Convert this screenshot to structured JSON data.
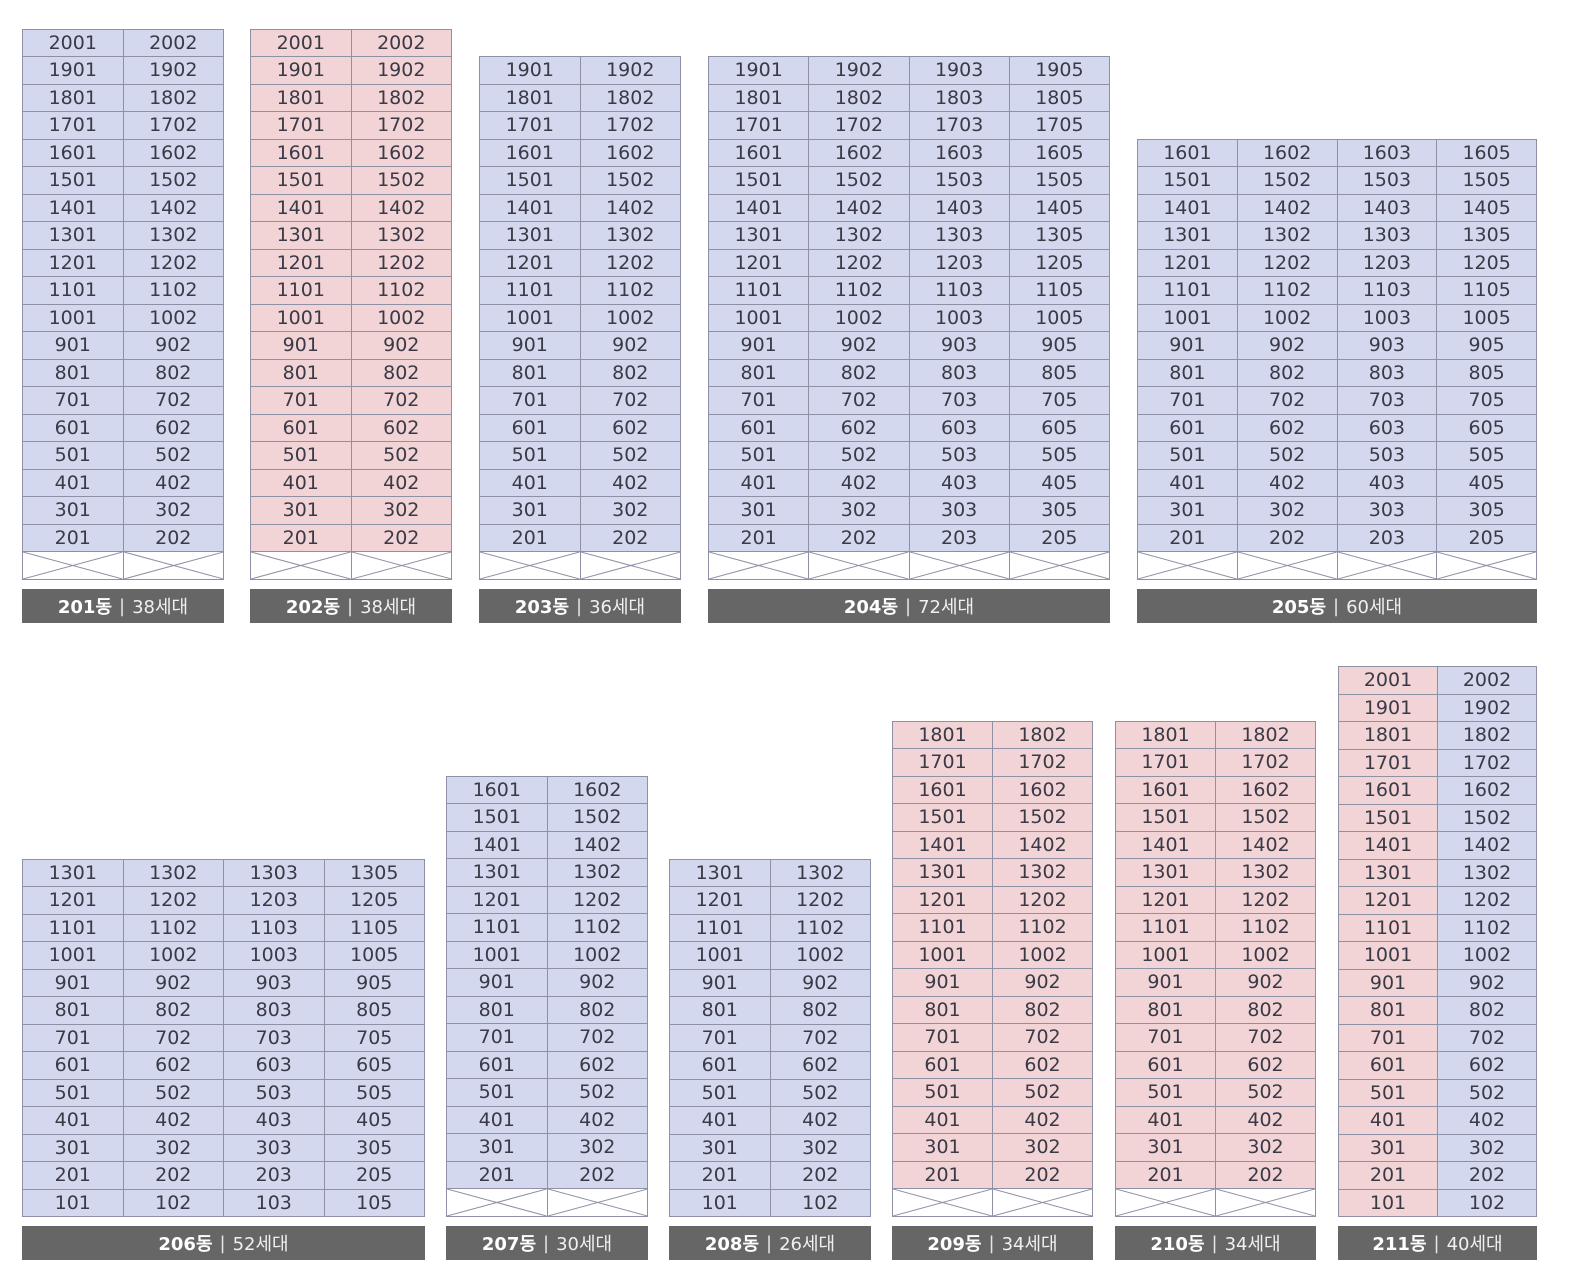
{
  "colors": {
    "available": "#d4d8ee",
    "highlighted": "#f2d4d6",
    "label_bg": "#666666",
    "grid_line": "#8e90a6"
  },
  "buildings": [
    {
      "name": "201동",
      "count": "38세대",
      "lines": [
        "01",
        "02"
      ],
      "top": 20,
      "bottom": 2,
      "pilotis": true,
      "pink_cols": []
    },
    {
      "name": "202동",
      "count": "38세대",
      "lines": [
        "01",
        "02"
      ],
      "top": 20,
      "bottom": 2,
      "pilotis": true,
      "pink_cols": [
        0,
        1
      ]
    },
    {
      "name": "203동",
      "count": "36세대",
      "lines": [
        "01",
        "02"
      ],
      "top": 19,
      "bottom": 2,
      "pilotis": true,
      "pink_cols": []
    },
    {
      "name": "204동",
      "count": "72세대",
      "lines": [
        "01",
        "02",
        "03",
        "05"
      ],
      "top": 19,
      "bottom": 2,
      "pilotis": true,
      "pink_cols": []
    },
    {
      "name": "205동",
      "count": "60세대",
      "lines": [
        "01",
        "02",
        "03",
        "05"
      ],
      "top": 16,
      "bottom": 2,
      "pilotis": true,
      "pink_cols": []
    },
    {
      "name": "206동",
      "count": "52세대",
      "lines": [
        "01",
        "02",
        "03",
        "05"
      ],
      "top": 13,
      "bottom": 1,
      "pilotis": false,
      "pink_cols": []
    },
    {
      "name": "207동",
      "count": "30세대",
      "lines": [
        "01",
        "02"
      ],
      "top": 16,
      "bottom": 2,
      "pilotis": true,
      "pink_cols": []
    },
    {
      "name": "208동",
      "count": "26세대",
      "lines": [
        "01",
        "02"
      ],
      "top": 13,
      "bottom": 1,
      "pilotis": false,
      "pink_cols": []
    },
    {
      "name": "209동",
      "count": "34세대",
      "lines": [
        "01",
        "02"
      ],
      "top": 18,
      "bottom": 2,
      "pilotis": true,
      "pink_cols": [
        0,
        1
      ]
    },
    {
      "name": "210동",
      "count": "34세대",
      "lines": [
        "01",
        "02"
      ],
      "top": 18,
      "bottom": 2,
      "pilotis": true,
      "pink_cols": [
        0,
        1
      ]
    },
    {
      "name": "211동",
      "count": "40세대",
      "lines": [
        "01",
        "02"
      ],
      "top": 20,
      "bottom": 1,
      "pilotis": false,
      "pink_cols": [
        0
      ]
    }
  ]
}
